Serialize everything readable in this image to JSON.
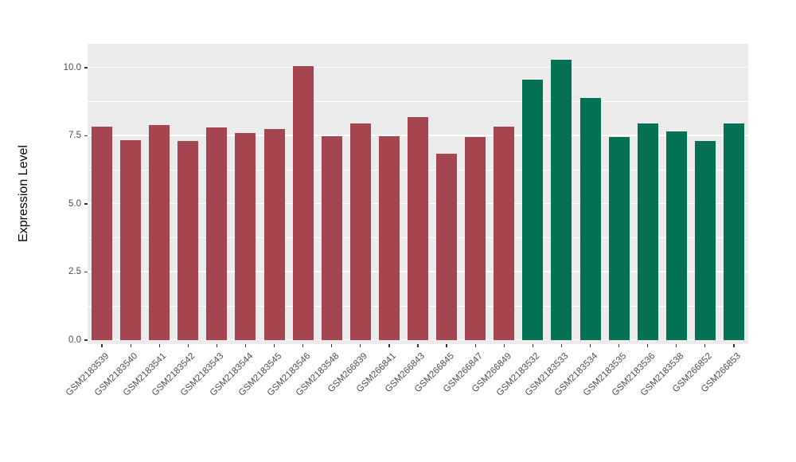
{
  "chart_data": {
    "type": "bar",
    "title": "",
    "xlabel": "",
    "ylabel": "Expression Level",
    "ylim": [
      0,
      10.88
    ],
    "grid": true,
    "legend_position": "none",
    "panel_background": "#ebebeb",
    "grid_color": "#ffffff",
    "axis_text_color": "#4d4d4d",
    "tick_color": "#333333",
    "ytick_labels": [
      "0.0",
      "2.5",
      "5.0",
      "7.5",
      "10.0"
    ],
    "ytick_values": [
      0,
      2.5,
      5,
      7.5,
      10
    ],
    "minor_tick_values": [
      1.25,
      3.75,
      6.25,
      8.75
    ],
    "categories": [
      "GSM2183539",
      "GSM2183540",
      "GSM2183541",
      "GSM2183542",
      "GSM2183543",
      "GSM2183544",
      "GSM2183545",
      "GSM2183546",
      "GSM2183548",
      "GSM266839",
      "GSM266841",
      "GSM266843",
      "GSM266845",
      "GSM266847",
      "GSM266849",
      "GSM2183532",
      "GSM2183533",
      "GSM2183534",
      "GSM2183535",
      "GSM2183536",
      "GSM2183538",
      "GSM266852",
      "GSM266853"
    ],
    "values": [
      7.85,
      7.35,
      7.9,
      7.3,
      7.8,
      7.6,
      7.75,
      10.05,
      7.5,
      7.95,
      7.5,
      8.2,
      6.85,
      7.45,
      7.85,
      9.55,
      10.3,
      8.9,
      7.45,
      7.95,
      7.65,
      7.3,
      7.95
    ],
    "groups": [
      "group1",
      "group1",
      "group1",
      "group1",
      "group1",
      "group1",
      "group1",
      "group1",
      "group1",
      "group1",
      "group1",
      "group1",
      "group1",
      "group1",
      "group1",
      "group2",
      "group2",
      "group2",
      "group2",
      "group2",
      "group2",
      "group2",
      "group2"
    ],
    "group_colors": {
      "group1": "#a4454f",
      "group2": "#047054"
    }
  }
}
